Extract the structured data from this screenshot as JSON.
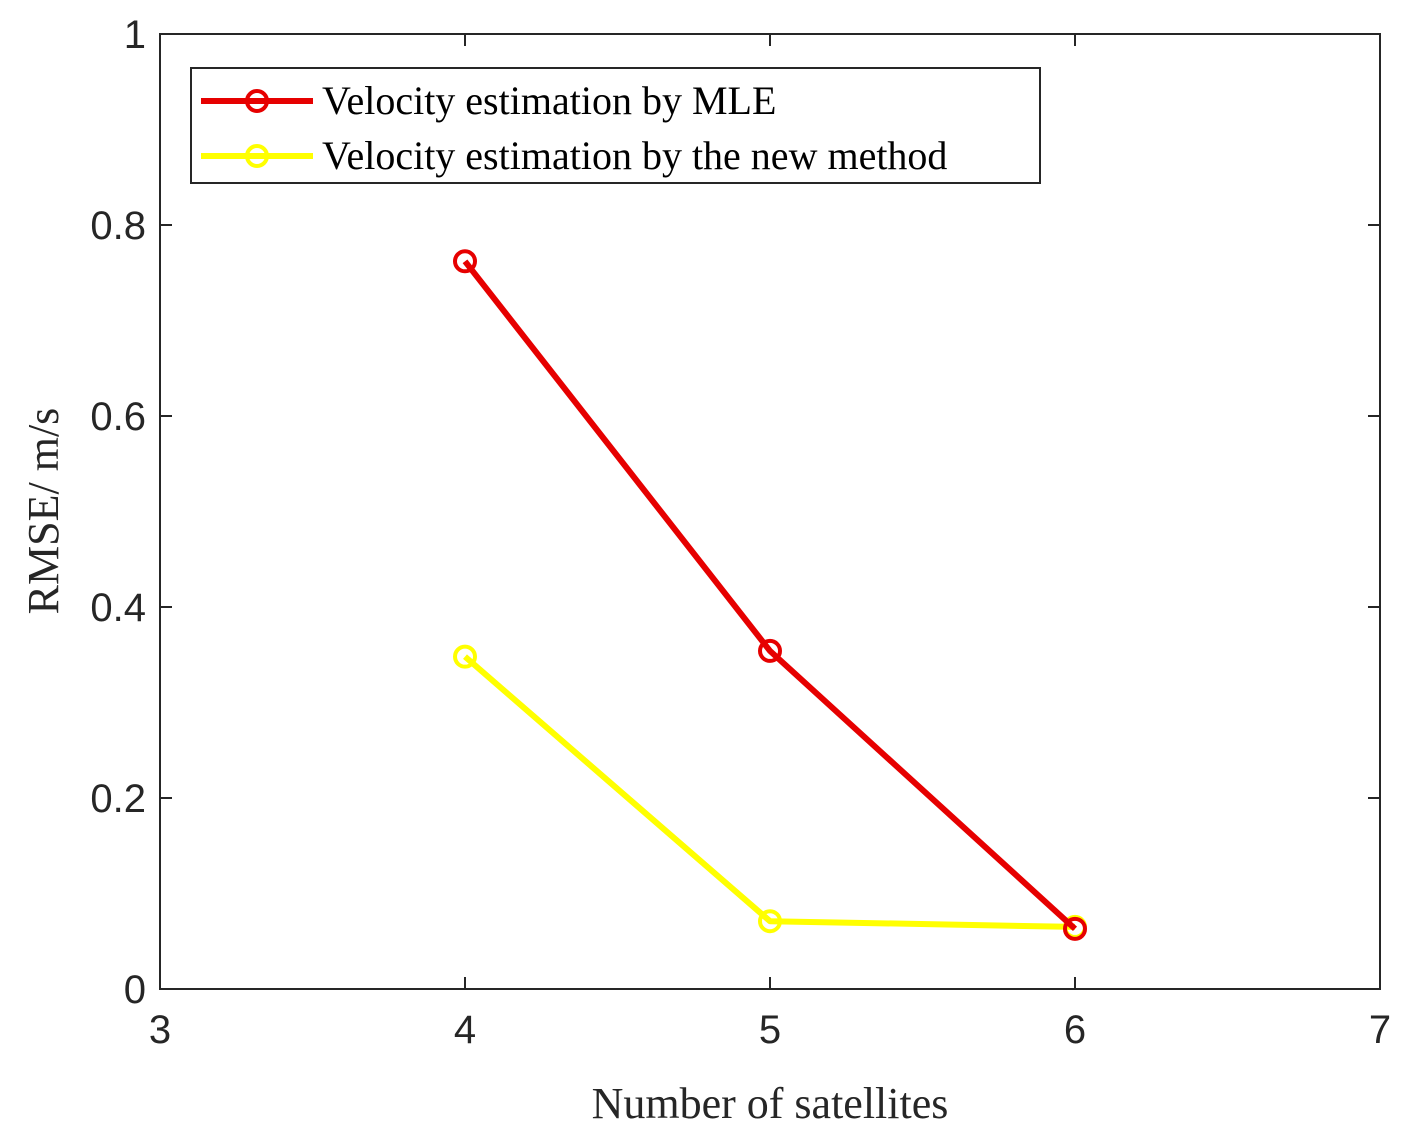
{
  "chart_data": {
    "type": "line",
    "title": "",
    "xlabel": "Number of satellites",
    "ylabel": "RMSE/ m/s",
    "xlim": [
      3,
      7
    ],
    "ylim": [
      0,
      1
    ],
    "xticks": [
      3,
      4,
      5,
      6,
      7
    ],
    "yticks": [
      0,
      0.2,
      0.4,
      0.6,
      0.8,
      1
    ],
    "xtick_labels": [
      "3",
      "4",
      "5",
      "6",
      "7"
    ],
    "ytick_labels": [
      "0",
      "0.2",
      "0.4",
      "0.6",
      "0.8",
      "1"
    ],
    "grid": false,
    "legend_position": "top-left",
    "x": [
      4,
      5,
      6
    ],
    "series": [
      {
        "name": "Velocity estimation by MLE",
        "values": [
          0.762,
          0.354,
          0.063
        ],
        "color": "#e60000",
        "marker": "circle"
      },
      {
        "name": "Velocity estimation by the new method",
        "values": [
          0.348,
          0.071,
          0.065
        ],
        "color": "#ffff00",
        "marker": "circle"
      }
    ]
  }
}
